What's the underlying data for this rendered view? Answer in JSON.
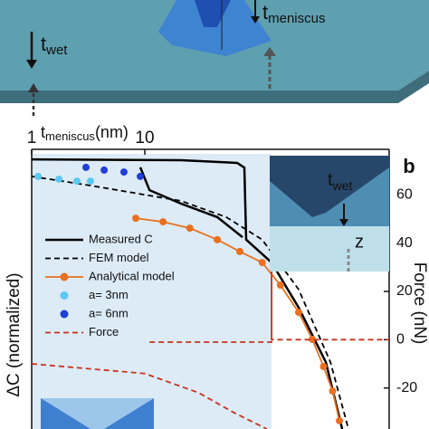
{
  "illustration": {
    "t_meniscus": {
      "base": "t",
      "sub": "meniscus"
    },
    "t_wet": {
      "base": "t",
      "sub": "wet"
    }
  },
  "chart_data": {
    "type": "line",
    "panel_label": "b",
    "x_label": {
      "base": "t",
      "sub": "meniscus",
      "unit": "(nm)"
    },
    "y_label": "ΔC (normalized)",
    "y2_label": "Force (nN)",
    "xlog": true,
    "xlim": [
      1,
      1445
    ],
    "xticks": [
      1,
      10
    ],
    "ylim": [
      0,
      1
    ],
    "y2lim": [
      -37,
      77
    ],
    "y2ticks": [
      60,
      40,
      20,
      0,
      -20
    ],
    "series": [
      {
        "name": "Measured C",
        "color": "#000000",
        "style": "solid",
        "x": [
          1,
          20.9,
          65.5,
          75.9,
          78.7,
          132,
          229,
          398,
          555,
          null,
          9.12,
          11,
          20.9,
          43.7,
          73.1
        ],
        "values": [
          0.98,
          0.977,
          0.967,
          0.95,
          0.688,
          0.605,
          0.441,
          0.243,
          0,
          null,
          0.951,
          0.868,
          0.819,
          0.77,
          0.697
        ]
      },
      {
        "name": "FEM model",
        "color": "#000000",
        "style": "dashed",
        "x": [
          1,
          3.31,
          20.9,
          52.5,
          109,
          229,
          437,
          631
        ],
        "values": [
          0.918,
          0.885,
          0.829,
          0.77,
          0.688,
          0.507,
          0.243,
          0
        ]
      },
      {
        "name": "Analytical model",
        "color": "#e8701f",
        "style": "line-dots",
        "x": [
          8.32,
          14.5,
          25,
          43.7,
          69.2,
          109,
          158,
          229,
          302,
          380,
          457,
          525
        ],
        "values": [
          0.766,
          0.753,
          0.73,
          0.688,
          0.645,
          0.605,
          0.523,
          0.424,
          0.326,
          0.227,
          0.138,
          0.03
        ]
      },
      {
        "name": "a= 3nm",
        "color": "#5bc8f0",
        "style": "dots",
        "x": [
          1.14,
          1.74,
          2.51,
          3.31
        ],
        "values": [
          0.918,
          0.908,
          0.901,
          0.901
        ]
      },
      {
        "name": "a= 6nm",
        "color": "#1f3fd8",
        "style": "dots",
        "x": [
          3.02,
          4.37,
          6.54,
          9.12
        ],
        "values": [
          0.951,
          0.941,
          0.934,
          0.918
        ]
      },
      {
        "name": "Force",
        "color": "#c8321e",
        "style": "dashed",
        "axis": "y2",
        "x": [
          1,
          10,
          30,
          60,
          120,
          null,
          11,
          100,
          132,
          132,
          132,
          1445
        ],
        "values": [
          -10,
          -14,
          -22,
          -30,
          -37,
          null,
          -1,
          -1,
          -1,
          33,
          0,
          0
        ]
      }
    ],
    "inset": {
      "t_wet": {
        "base": "t",
        "sub": "wet"
      },
      "z": "z"
    }
  }
}
